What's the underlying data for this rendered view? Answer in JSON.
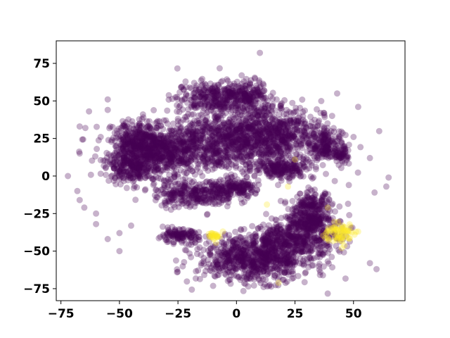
{
  "chart_data": {
    "type": "scatter",
    "title": "",
    "xlabel": "",
    "ylabel": "",
    "xlim": [
      -77,
      72
    ],
    "ylim": [
      -83,
      90
    ],
    "grid": false,
    "legend": "none",
    "x_ticks": [
      -75,
      -50,
      -25,
      0,
      25,
      50
    ],
    "y_ticks": [
      -75,
      -50,
      -25,
      0,
      25,
      50,
      75
    ],
    "x_tick_labels": [
      "−75",
      "−50",
      "−25",
      "0",
      "25",
      "50"
    ],
    "y_tick_labels": [
      "−75",
      "−50",
      "−25",
      "0",
      "25",
      "50",
      "75"
    ],
    "point_opacity": 0.3,
    "series": [
      {
        "class": 0,
        "color": "#440154",
        "clusters": [
          {
            "cx": -5,
            "cy": 22,
            "rx": 38,
            "ry": 18,
            "n": 900
          },
          {
            "cx": -30,
            "cy": 15,
            "rx": 18,
            "ry": 14,
            "n": 500
          },
          {
            "cx": 12,
            "cy": 30,
            "rx": 22,
            "ry": 18,
            "n": 600
          },
          {
            "cx": -10,
            "cy": 52,
            "rx": 14,
            "ry": 10,
            "n": 300
          },
          {
            "cx": 5,
            "cy": 55,
            "rx": 8,
            "ry": 8,
            "n": 150
          },
          {
            "cx": -18,
            "cy": -12,
            "rx": 16,
            "ry": 8,
            "n": 300
          },
          {
            "cx": 0,
            "cy": -8,
            "rx": 10,
            "ry": 5,
            "n": 150
          },
          {
            "cx": 8,
            "cy": -55,
            "rx": 22,
            "ry": 14,
            "n": 800
          },
          {
            "cx": 25,
            "cy": -42,
            "rx": 18,
            "ry": 10,
            "n": 400
          },
          {
            "cx": -25,
            "cy": -40,
            "rx": 8,
            "ry": 4,
            "n": 120
          },
          {
            "cx": 20,
            "cy": 5,
            "rx": 12,
            "ry": 6,
            "n": 200
          },
          {
            "cx": 38,
            "cy": 20,
            "rx": 5,
            "ry": 10,
            "n": 150
          },
          {
            "cx": 45,
            "cy": 15,
            "rx": 3,
            "ry": 5,
            "n": 60
          },
          {
            "cx": 32,
            "cy": -20,
            "rx": 8,
            "ry": 8,
            "n": 180
          },
          {
            "cx": -42,
            "cy": 22,
            "rx": 10,
            "ry": 12,
            "n": 300
          },
          {
            "cx": -45,
            "cy": 5,
            "rx": 10,
            "ry": 8,
            "n": 220
          },
          {
            "cx": 30,
            "cy": -30,
            "rx": 10,
            "ry": 6,
            "n": 200
          }
        ],
        "outliers": [
          [
            -72,
            0
          ],
          [
            -68,
            -10
          ],
          [
            -67,
            -16
          ],
          [
            -65,
            -21
          ],
          [
            -60,
            -25
          ],
          [
            -60,
            -32
          ],
          [
            -55,
            -42
          ],
          [
            -50,
            -50
          ],
          [
            -50,
            -38
          ],
          [
            -45,
            -33
          ],
          [
            -67,
            15
          ],
          [
            -67,
            33
          ],
          [
            -63,
            43
          ],
          [
            -55,
            44
          ],
          [
            -55,
            51
          ],
          [
            -58,
            26
          ],
          [
            10,
            82
          ],
          [
            43,
            55
          ],
          [
            52,
            46
          ],
          [
            50,
            26
          ],
          [
            57,
            12
          ],
          [
            59,
            -11
          ],
          [
            64,
            -7
          ],
          [
            65,
            -1
          ],
          [
            48,
            -6
          ],
          [
            57,
            -58
          ]
        ]
      },
      {
        "class": 1,
        "color": "#fde725",
        "clusters": [
          {
            "cx": 44,
            "cy": -38,
            "rx": 6,
            "ry": 6,
            "n": 70
          },
          {
            "cx": -8,
            "cy": -40,
            "rx": 4,
            "ry": 3,
            "n": 25
          }
        ],
        "outliers": [
          [
            25,
            11
          ],
          [
            13,
            -19
          ],
          [
            22,
            -7
          ],
          [
            18,
            -71
          ],
          [
            39,
            -21
          ],
          [
            52,
            -37
          ],
          [
            45,
            -48
          ]
        ]
      }
    ]
  }
}
